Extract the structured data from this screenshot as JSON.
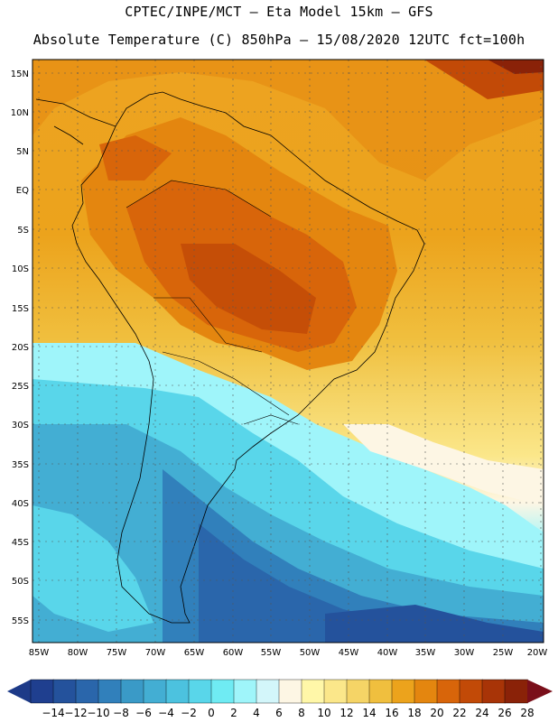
{
  "header": {
    "line1": "CPTEC/INPE/MCT –  Eta Model 15km – GFS",
    "line2": "Absolute Temperature (C) 850hPa – 15/08/2020 12UTC fct=100h"
  },
  "axes": {
    "lat_labels": [
      "15N",
      "10N",
      "5N",
      "EQ",
      "5S",
      "10S",
      "15S",
      "20S",
      "25S",
      "30S",
      "35S",
      "40S",
      "45S",
      "50S",
      "55S"
    ],
    "lon_labels": [
      "85W",
      "80W",
      "75W",
      "70W",
      "65W",
      "60W",
      "55W",
      "50W",
      "45W",
      "40W",
      "35W",
      "30W",
      "25W",
      "20W"
    ]
  },
  "colorbar": {
    "labels": [
      "-14",
      "-12",
      "-10",
      "-8",
      "-6",
      "-4",
      "-2",
      "0",
      "2",
      "4",
      "6",
      "8",
      "10",
      "12",
      "14",
      "16",
      "18",
      "20",
      "22",
      "24",
      "26",
      "28"
    ],
    "colors": [
      "#1f3f8f",
      "#24529c",
      "#2a66ab",
      "#3180bb",
      "#3a9ac7",
      "#43aed3",
      "#4cc2df",
      "#59d6ea",
      "#6febf3",
      "#9ff5fa",
      "#d3f6fa",
      "#fdf6e4",
      "#fff7a8",
      "#fbe78a",
      "#f5d466",
      "#f0bf3e",
      "#eca31c",
      "#e4860f",
      "#d8650a",
      "#c24a07",
      "#a83407",
      "#8a2208"
    ],
    "low_arrow_color": "#1d3a88",
    "high_arrow_color": "#7a0f1a"
  }
}
